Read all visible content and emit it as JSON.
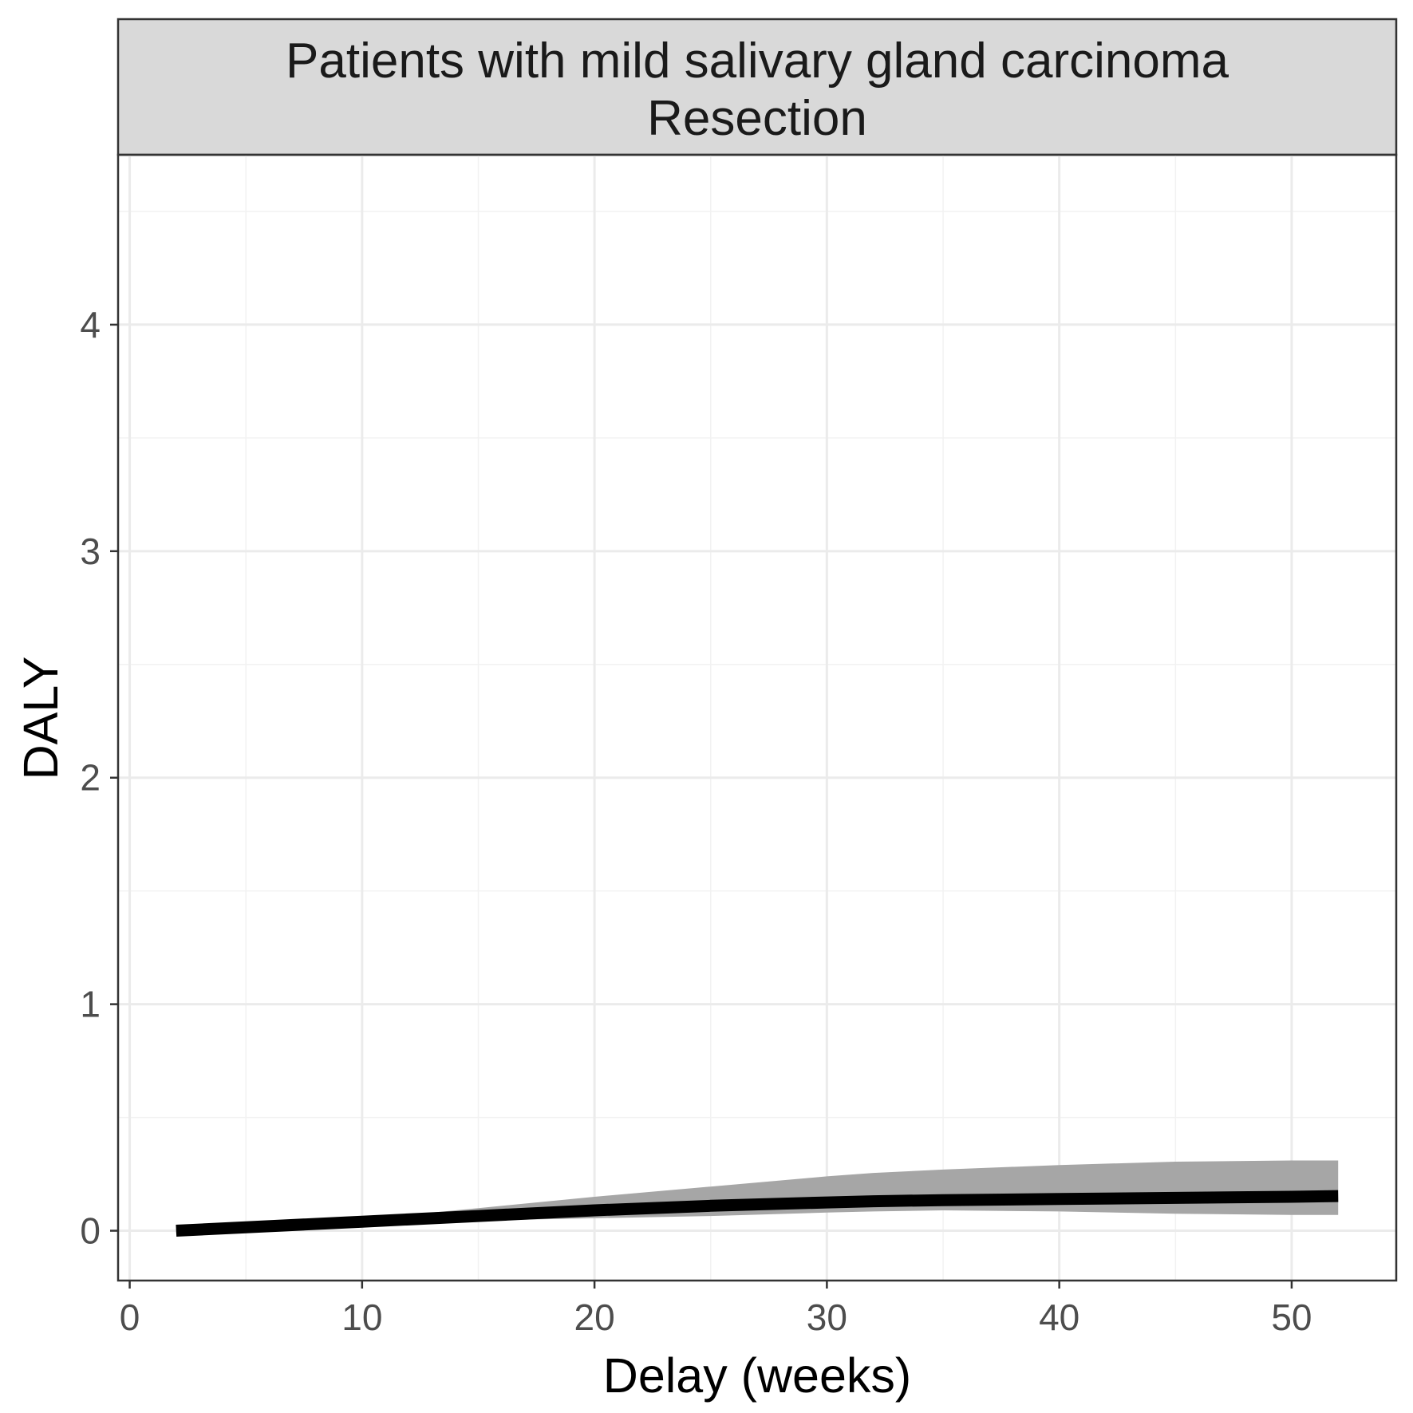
{
  "chart_data": {
    "type": "line",
    "strip_lines": [
      "Patients with mild salivary gland carcinoma",
      "Resection"
    ],
    "xlabel": "Delay (weeks)",
    "ylabel": "DALY",
    "xlim": [
      -0.5,
      54.5
    ],
    "ylim": [
      -0.22,
      4.75
    ],
    "x_ticks": [
      0,
      10,
      20,
      30,
      40,
      50
    ],
    "y_ticks": [
      0,
      1,
      2,
      3,
      4
    ],
    "grid": true,
    "series": [
      {
        "x": [
          2,
          10,
          15,
          20,
          25,
          30,
          32,
          35,
          40,
          45,
          50,
          52
        ],
        "y": [
          0.0,
          0.04,
          0.065,
          0.09,
          0.11,
          0.125,
          0.13,
          0.135,
          0.14,
          0.145,
          0.15,
          0.153
        ],
        "lower": [
          -0.01,
          0.035,
          0.045,
          0.055,
          0.065,
          0.08,
          0.085,
          0.09,
          0.085,
          0.075,
          0.07,
          0.07
        ],
        "upper": [
          0.01,
          0.05,
          0.1,
          0.15,
          0.195,
          0.24,
          0.255,
          0.27,
          0.29,
          0.305,
          0.31,
          0.31
        ]
      }
    ],
    "colors": {
      "line": "#000000",
      "ribbon": "#a6a6a6",
      "strip_fill": "#d9d9d9",
      "panel_border": "#333333",
      "grid_major": "#ebebeb",
      "grid_minor": "#f2f2f2"
    }
  }
}
